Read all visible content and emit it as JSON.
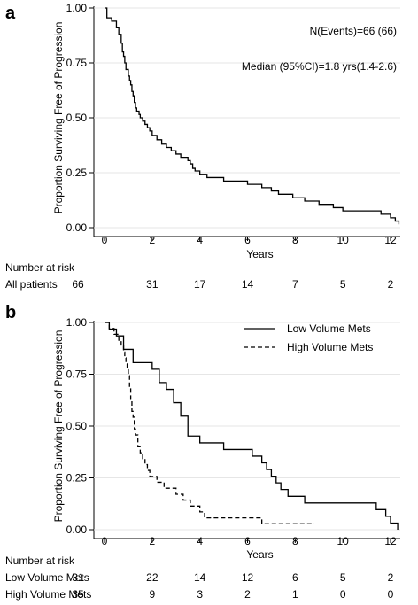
{
  "chart_data": [
    {
      "panel": "a",
      "type": "line",
      "step": true,
      "ylabel": "Proportion Surviving Free of Progression",
      "xlabel": "Years",
      "xlim": [
        0,
        12.4
      ],
      "ylim": [
        0,
        1
      ],
      "xticks": [
        "0",
        "2",
        "4",
        "6",
        "8",
        "10",
        "12"
      ],
      "yticks": [
        "0.00",
        "0.25",
        "0.50",
        "0.75",
        "1.00"
      ],
      "grid": true,
      "annotations": [
        "N(Events)=66 (66)",
        "Median (95%CI)=1.8 yrs(1.4-2.6)"
      ],
      "series": [
        {
          "style": "solid",
          "x": [
            0,
            0.1,
            0.3,
            0.5,
            0.6,
            0.7,
            0.75,
            0.8,
            0.85,
            0.9,
            1.0,
            1.05,
            1.1,
            1.15,
            1.2,
            1.25,
            1.3,
            1.35,
            1.45,
            1.5,
            1.6,
            1.7,
            1.8,
            1.9,
            2.0,
            2.2,
            2.4,
            2.6,
            2.8,
            3.0,
            3.2,
            3.5,
            3.6,
            3.7,
            3.8,
            4.0,
            4.3,
            5.0,
            6.0,
            6.6,
            7.0,
            7.3,
            7.9,
            8.4,
            9.0,
            9.6,
            10.0,
            11.6,
            12.0,
            12.2,
            12.35
          ],
          "y": [
            1.0,
            0.955,
            0.94,
            0.91,
            0.88,
            0.84,
            0.8,
            0.78,
            0.75,
            0.72,
            0.69,
            0.67,
            0.65,
            0.62,
            0.6,
            0.57,
            0.545,
            0.53,
            0.515,
            0.5,
            0.485,
            0.47,
            0.455,
            0.44,
            0.42,
            0.4,
            0.38,
            0.365,
            0.35,
            0.335,
            0.32,
            0.305,
            0.29,
            0.27,
            0.258,
            0.243,
            0.228,
            0.212,
            0.197,
            0.182,
            0.167,
            0.152,
            0.136,
            0.121,
            0.106,
            0.091,
            0.076,
            0.061,
            0.045,
            0.03,
            0.015
          ]
        }
      ],
      "risk_table": {
        "title": "Number at risk",
        "rows": [
          {
            "label": "All patients",
            "values": [
              "66",
              "31",
              "17",
              "14",
              "7",
              "5",
              "2"
            ]
          }
        ]
      }
    },
    {
      "panel": "b",
      "type": "line",
      "step": true,
      "ylabel": "Proportion Surviving Free of Progression",
      "xlabel": "Years",
      "xlim": [
        0,
        12.4
      ],
      "ylim": [
        0,
        1
      ],
      "xticks": [
        "0",
        "2",
        "4",
        "6",
        "8",
        "10",
        "12"
      ],
      "yticks": [
        "0.00",
        "0.25",
        "0.50",
        "0.75",
        "1.00"
      ],
      "grid": true,
      "legend_position": "top-right",
      "series": [
        {
          "name": "Low Volume Mets",
          "style": "solid",
          "x": [
            0,
            0.2,
            0.5,
            0.8,
            1.2,
            2.0,
            2.3,
            2.6,
            2.9,
            3.2,
            3.5,
            4.0,
            5.0,
            6.2,
            6.6,
            6.8,
            7.0,
            7.2,
            7.4,
            7.7,
            8.4,
            9.2,
            10.2,
            11.4,
            11.8,
            12.0,
            12.3
          ],
          "y": [
            1.0,
            0.968,
            0.935,
            0.87,
            0.806,
            0.774,
            0.71,
            0.677,
            0.613,
            0.548,
            0.452,
            0.419,
            0.387,
            0.355,
            0.323,
            0.29,
            0.258,
            0.226,
            0.194,
            0.161,
            0.129,
            0.129,
            0.129,
            0.097,
            0.065,
            0.032,
            0.0
          ]
        },
        {
          "name": "High Volume Mets",
          "style": "dashed",
          "x": [
            0,
            0.2,
            0.4,
            0.6,
            0.7,
            0.8,
            0.85,
            0.9,
            0.95,
            1.0,
            1.05,
            1.1,
            1.15,
            1.2,
            1.25,
            1.3,
            1.4,
            1.5,
            1.6,
            1.7,
            1.8,
            1.9,
            2.0,
            2.2,
            2.5,
            3.0,
            3.3,
            3.6,
            4.0,
            4.2,
            6.2,
            6.6,
            8.8
          ],
          "y": [
            1.0,
            0.971,
            0.943,
            0.914,
            0.886,
            0.857,
            0.829,
            0.8,
            0.771,
            0.743,
            0.686,
            0.629,
            0.571,
            0.543,
            0.486,
            0.457,
            0.4,
            0.371,
            0.343,
            0.314,
            0.286,
            0.257,
            0.257,
            0.229,
            0.2,
            0.171,
            0.143,
            0.114,
            0.086,
            0.057,
            0.057,
            0.029,
            0.029
          ]
        }
      ],
      "risk_table": {
        "title": "Number at risk",
        "rows": [
          {
            "label": "Low Volume Mets",
            "values": [
              "31",
              "22",
              "14",
              "12",
              "6",
              "5",
              "2"
            ]
          },
          {
            "label": "High Volume Mets",
            "values": [
              "35",
              "9",
              "3",
              "2",
              "1",
              "0",
              "0"
            ]
          }
        ]
      }
    }
  ]
}
